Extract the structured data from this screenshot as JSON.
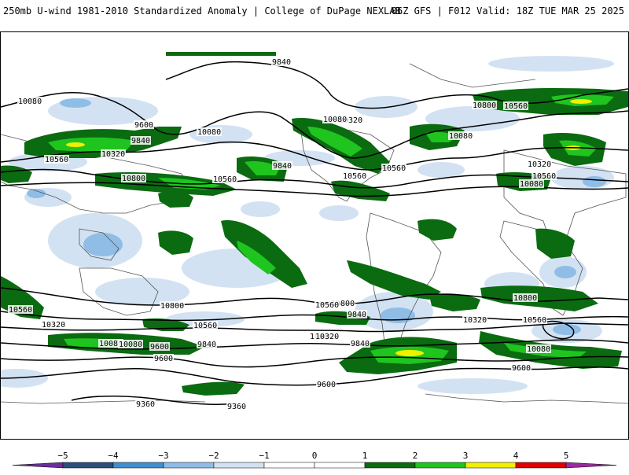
{
  "header": {
    "title": "250mb U-wind 1981-2010 Standardized Anomaly | College of DuPage NEXLAB",
    "run_info": "06Z GFS | F012 Valid: 18Z TUE MAR 25 2025"
  },
  "map": {
    "contour_labels": [
      {
        "text": "9840"
      },
      {
        "text": "10080"
      },
      {
        "text": "9600"
      },
      {
        "text": "9840"
      },
      {
        "text": "10320"
      },
      {
        "text": "10560"
      },
      {
        "text": "10080"
      },
      {
        "text": "10800"
      },
      {
        "text": "10560"
      },
      {
        "text": "10320"
      },
      {
        "text": "10080"
      },
      {
        "text": "10560"
      },
      {
        "text": "10800"
      },
      {
        "text": "10560"
      },
      {
        "text": "9840"
      },
      {
        "text": "10080"
      },
      {
        "text": "10320"
      },
      {
        "text": "10560"
      },
      {
        "text": "10080"
      },
      {
        "text": "10560"
      },
      {
        "text": "10320"
      },
      {
        "text": "10800"
      },
      {
        "text": "10560"
      },
      {
        "text": "10320"
      },
      {
        "text": "10080"
      },
      {
        "text": "10800"
      },
      {
        "text": "10560"
      },
      {
        "text": "10320"
      },
      {
        "text": "10080"
      },
      {
        "text": "9840"
      },
      {
        "text": "9600"
      },
      {
        "text": "10800"
      },
      {
        "text": "10560"
      },
      {
        "text": "10320"
      },
      {
        "text": "10080"
      },
      {
        "text": "9840"
      },
      {
        "text": "9600"
      },
      {
        "text": "10800"
      },
      {
        "text": "10560"
      },
      {
        "text": "10080"
      },
      {
        "text": "9840"
      },
      {
        "text": "9600"
      },
      {
        "text": "9600"
      },
      {
        "text": "9360"
      },
      {
        "text": "9360"
      }
    ],
    "colors": {
      "neg5": "#6a2f9a",
      "neg4": "#2b4f7a",
      "neg3": "#3f8fd0",
      "neg2": "#8fbde6",
      "neg1": "#d2e2f2",
      "zero": "#ffffff",
      "pos1": "#0a6b10",
      "pos2": "#1fc41f",
      "pos3": "#f0f000",
      "pos4": "#e00000",
      "pos5": "#9a2aa0"
    }
  },
  "colorbar": {
    "ticks": [
      "−5",
      "−4",
      "−3",
      "−2",
      "−1",
      "0",
      "1",
      "2",
      "3",
      "4",
      "5"
    ],
    "values": [
      -5,
      -4,
      -3,
      -2,
      -1,
      0,
      1,
      2,
      3,
      4,
      5
    ]
  }
}
